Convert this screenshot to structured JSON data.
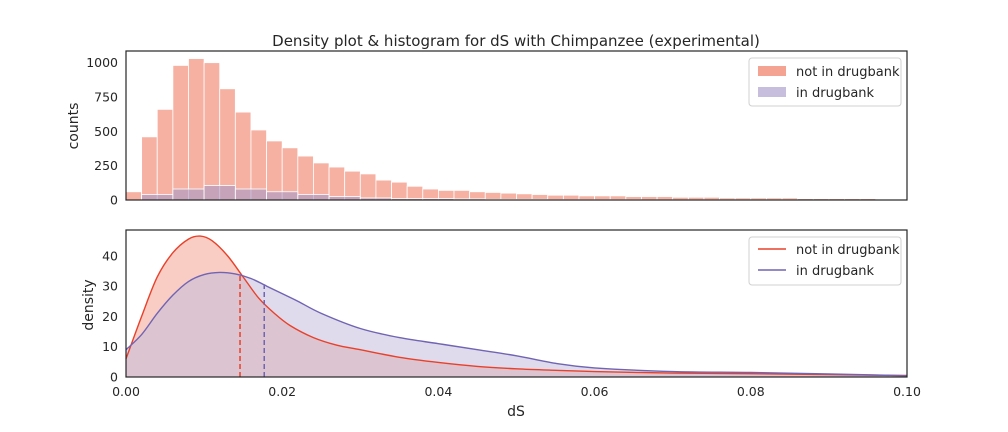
{
  "chart_data": [
    {
      "type": "bar",
      "title": "Density plot & histogram for dS with Chimpanzee (experimental)",
      "xlabel": "",
      "ylabel": "counts",
      "ylim": [
        0,
        1085
      ],
      "xlim": [
        0.0,
        0.1
      ],
      "yticks": [
        0,
        250,
        500,
        750,
        1000
      ],
      "grid": false,
      "legend_position": "top-right",
      "series": [
        {
          "name": "not in drugbank",
          "color": "#f4a393",
          "bin_start": 0.0,
          "bin_width": 0.002,
          "values": [
            60,
            460,
            660,
            980,
            1030,
            1000,
            810,
            640,
            510,
            430,
            380,
            320,
            270,
            240,
            210,
            190,
            145,
            130,
            100,
            80,
            70,
            70,
            60,
            55,
            50,
            45,
            40,
            35,
            35,
            30,
            30,
            30,
            25,
            25,
            25,
            20,
            20,
            20,
            15,
            15,
            15,
            15,
            15,
            10,
            10,
            10,
            10,
            10
          ]
        },
        {
          "name": "in drugbank",
          "color": "#a89ac8",
          "bin_start": 0.002,
          "bin_width": 0.004,
          "values": [
            40,
            80,
            105,
            80,
            60,
            40,
            25,
            15,
            10,
            10,
            8,
            5,
            5,
            3,
            3,
            3,
            2,
            2,
            2,
            2,
            2
          ]
        }
      ]
    },
    {
      "type": "area",
      "title": "",
      "xlabel": "dS",
      "ylabel": "density",
      "xlim": [
        0.0,
        0.1
      ],
      "ylim": [
        0,
        48.5
      ],
      "xticks": [
        "0.00",
        "0.02",
        "0.04",
        "0.06",
        "0.08",
        "0.10"
      ],
      "yticks": [
        0,
        10,
        20,
        30,
        40
      ],
      "grid": false,
      "legend_position": "top-right",
      "series": [
        {
          "name": "not in drugbank",
          "color": "#e8412a",
          "fill": "#f4a393",
          "median": 0.0146,
          "x": [
            0.0,
            0.002,
            0.004,
            0.006,
            0.008,
            0.0095,
            0.011,
            0.013,
            0.015,
            0.017,
            0.019,
            0.021,
            0.024,
            0.027,
            0.03,
            0.035,
            0.04,
            0.045,
            0.05,
            0.055,
            0.06,
            0.07,
            0.08,
            0.09,
            0.1
          ],
          "y": [
            6,
            20,
            33,
            41,
            45.5,
            46.5,
            45,
            40,
            33,
            26,
            21,
            17,
            13,
            10.5,
            9,
            6.5,
            4.8,
            3.5,
            2.7,
            2.2,
            1.8,
            1.3,
            1.1,
            0.8,
            0.5
          ]
        },
        {
          "name": "in drugbank",
          "color": "#7064b3",
          "fill": "#c7bedd",
          "median": 0.0177,
          "x": [
            0.0,
            0.002,
            0.004,
            0.006,
            0.008,
            0.01,
            0.012,
            0.014,
            0.016,
            0.018,
            0.02,
            0.022,
            0.025,
            0.03,
            0.035,
            0.04,
            0.045,
            0.05,
            0.055,
            0.06,
            0.07,
            0.08,
            0.09,
            0.1
          ],
          "y": [
            9,
            14,
            21,
            27,
            31.5,
            33.8,
            34.5,
            34,
            32.5,
            30,
            27.5,
            25,
            21,
            16,
            13,
            11,
            9,
            7,
            4.5,
            3,
            1.8,
            1.5,
            1,
            0.4
          ]
        }
      ]
    }
  ]
}
